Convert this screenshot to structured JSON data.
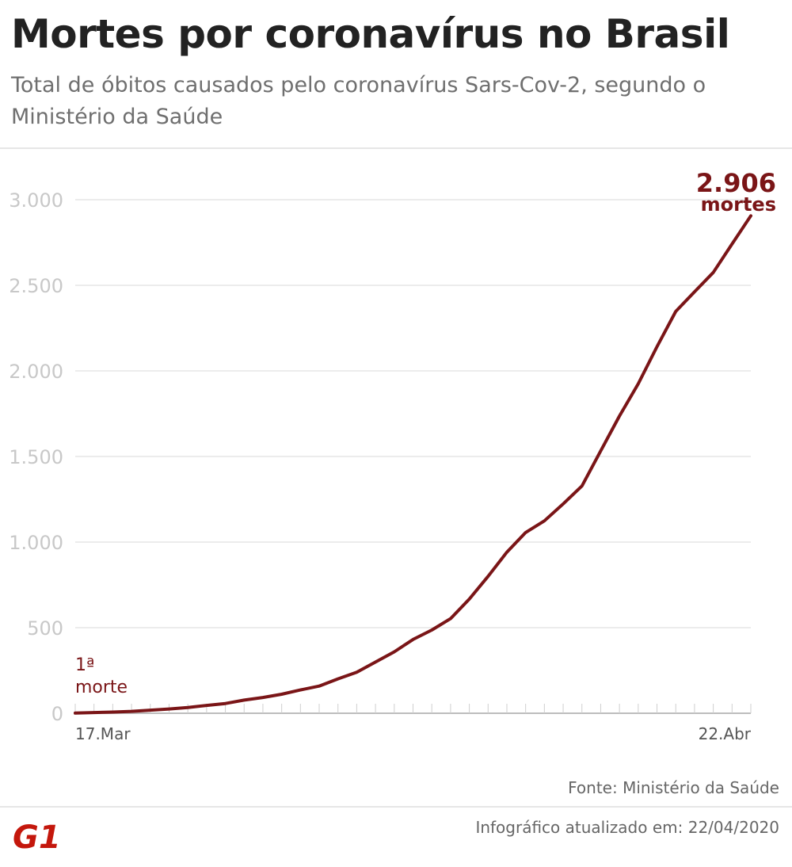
{
  "header": {
    "title": "Mortes por coronavírus no Brasil",
    "subtitle": "Total de óbitos causados pelo coronavírus Sars-Cov-2, segundo o Ministério da Saúde"
  },
  "footer": {
    "source": "Fonte: Ministério da Saúde",
    "updated": "Infográfico atualizado em: 22/04/2020",
    "logo_text": "G1",
    "logo_color": "#c4170c"
  },
  "chart_data": {
    "type": "line",
    "title": "Mortes por coronavírus no Brasil",
    "subtitle": "Total de óbitos causados pelo coronavírus Sars-Cov-2, segundo o Ministério da Saúde",
    "ylim": [
      0,
      3000
    ],
    "y_ticks": [
      0,
      500,
      1000,
      1500,
      2000,
      2500,
      3000
    ],
    "y_tick_labels": [
      "0",
      "500",
      "1.000",
      "1.500",
      "2.000",
      "2.500",
      "3.000"
    ],
    "x_tick_labels": [
      "17.Mar",
      "22.Abr"
    ],
    "grid": true,
    "series_color": "#7a1517",
    "x": [
      "17.Mar",
      "18.Mar",
      "19.Mar",
      "20.Mar",
      "21.Mar",
      "22.Mar",
      "23.Mar",
      "24.Mar",
      "25.Mar",
      "26.Mar",
      "27.Mar",
      "28.Mar",
      "29.Mar",
      "30.Mar",
      "31.Mar",
      "01.Abr",
      "02.Abr",
      "03.Abr",
      "04.Abr",
      "05.Abr",
      "06.Abr",
      "07.Abr",
      "08.Abr",
      "09.Abr",
      "10.Abr",
      "11.Abr",
      "12.Abr",
      "13.Abr",
      "14.Abr",
      "15.Abr",
      "16.Abr",
      "17.Abr",
      "18.Abr",
      "19.Abr",
      "20.Abr",
      "21.Abr",
      "22.Abr"
    ],
    "values": [
      1,
      4,
      7,
      11,
      18,
      25,
      34,
      46,
      57,
      77,
      92,
      111,
      136,
      159,
      201,
      240,
      299,
      359,
      431,
      486,
      553,
      667,
      800,
      941,
      1056,
      1124,
      1223,
      1328,
      1532,
      1736,
      1924,
      2141,
      2347,
      2462,
      2575,
      2741,
      2906
    ],
    "annotations": [
      {
        "line1": "1ª",
        "line2": "morte"
      },
      {
        "line1": "2.906",
        "line2": "mortes"
      }
    ]
  }
}
